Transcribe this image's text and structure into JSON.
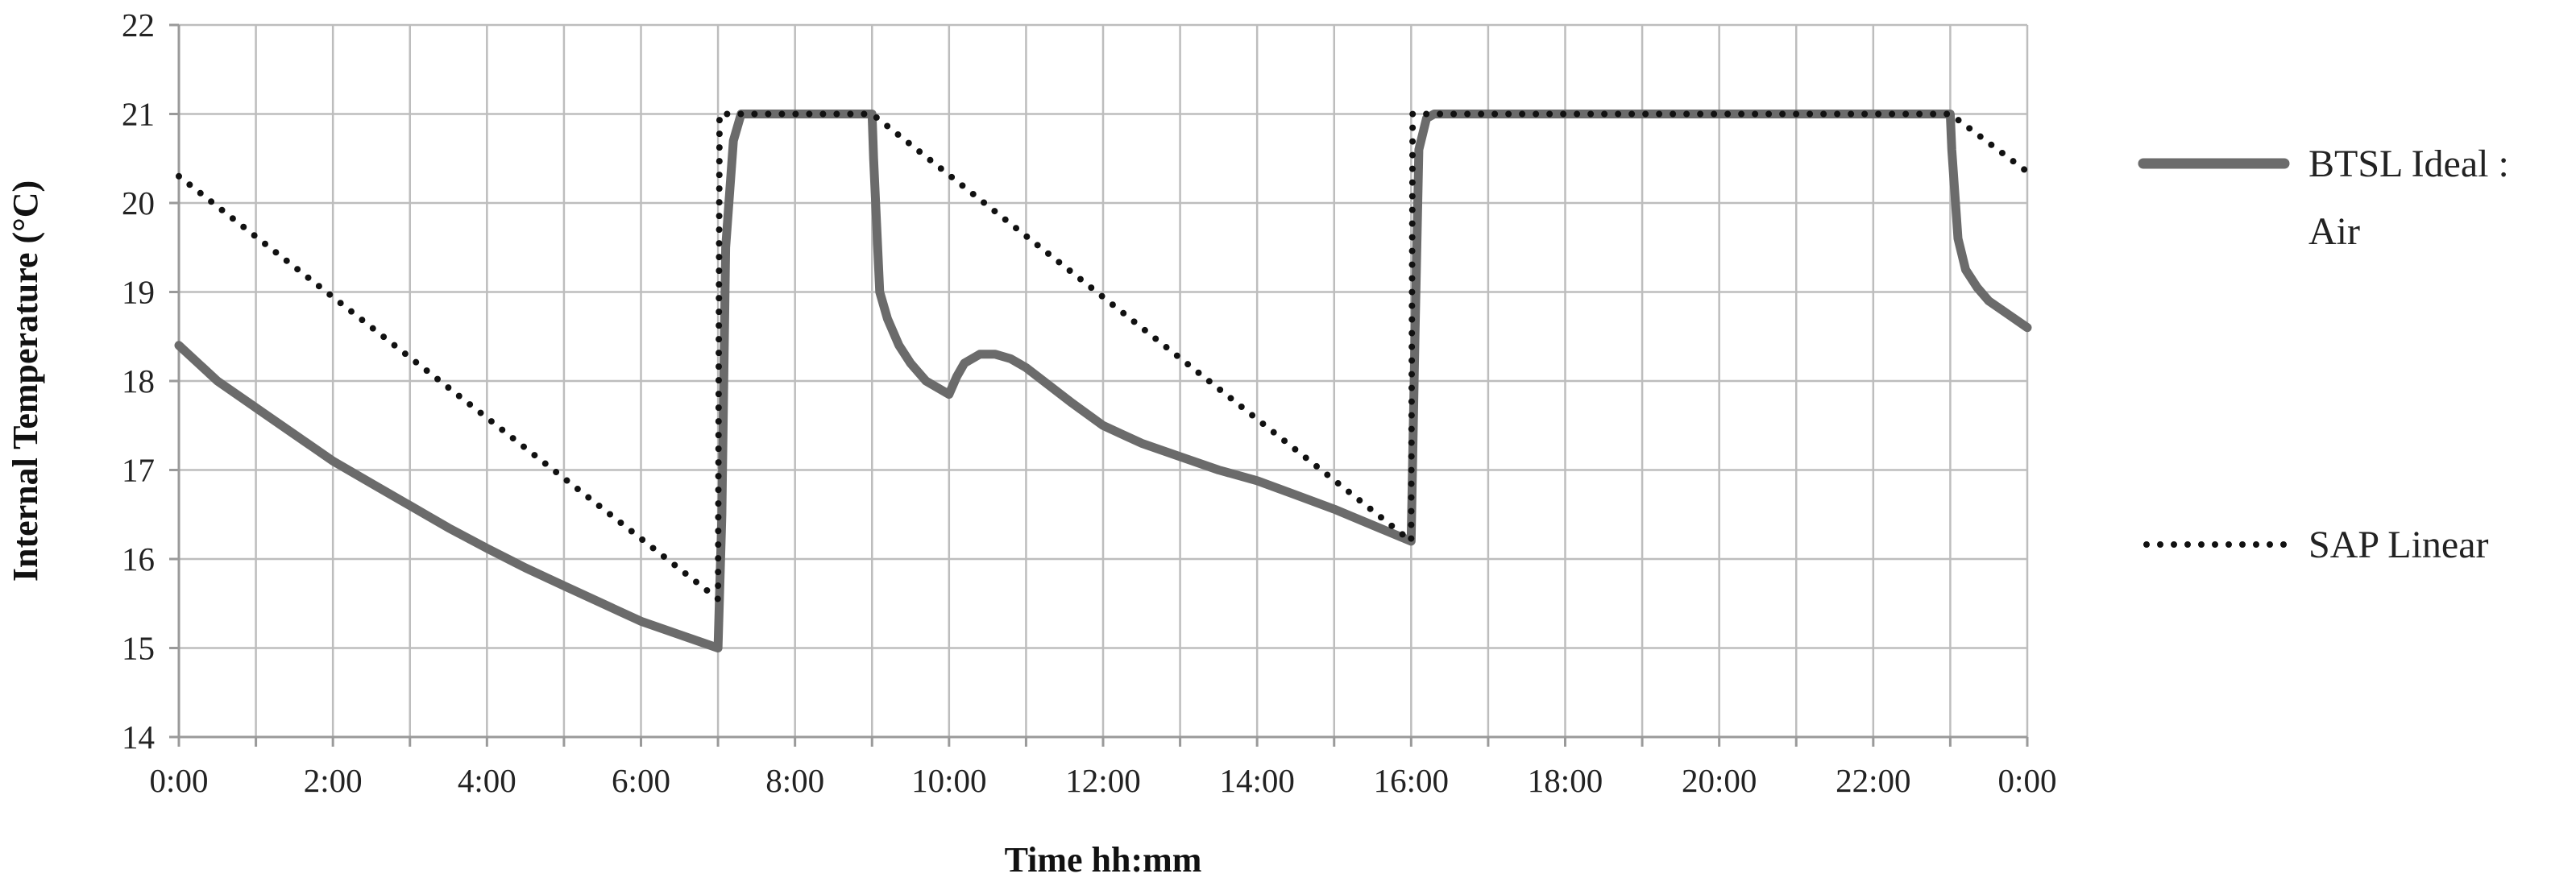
{
  "chart_data": {
    "type": "line",
    "xlabel": "Time hh:mm",
    "ylabel": "Internal Temperature (°C)",
    "xlim": [
      0,
      24
    ],
    "ylim": [
      14,
      22
    ],
    "x_ticks": [
      "0:00",
      "2:00",
      "4:00",
      "6:00",
      "8:00",
      "10:00",
      "12:00",
      "14:00",
      "16:00",
      "18:00",
      "20:00",
      "22:00",
      "0:00"
    ],
    "y_ticks": [
      "14",
      "15",
      "16",
      "17",
      "18",
      "19",
      "20",
      "21",
      "22"
    ],
    "grid": true,
    "legend_position": "right",
    "series": [
      {
        "name": "BTSL Ideal : Air",
        "name_lines": [
          "BTSL Ideal :",
          "Air"
        ],
        "style": "solid",
        "color": "#6b6b6b",
        "x": [
          0,
          0.5,
          1,
          1.5,
          2,
          2.5,
          3,
          3.5,
          4,
          4.5,
          5,
          5.5,
          6,
          6.5,
          7,
          7.05,
          7.1,
          7.2,
          7.3,
          7.5,
          8,
          8.5,
          9,
          9.02,
          9.1,
          9.2,
          9.35,
          9.5,
          9.7,
          10,
          10.1,
          10.2,
          10.4,
          10.6,
          10.8,
          11,
          11.3,
          11.6,
          12,
          12.5,
          13,
          13.5,
          14,
          14.5,
          15,
          15.5,
          16,
          16.05,
          16.1,
          16.2,
          16.3,
          17,
          18,
          19,
          20,
          21,
          22,
          23,
          23.02,
          23.1,
          23.2,
          23.35,
          23.5,
          23.75,
          24
        ],
        "y": [
          18.4,
          18.0,
          17.7,
          17.4,
          17.1,
          16.85,
          16.6,
          16.35,
          16.12,
          15.9,
          15.7,
          15.5,
          15.3,
          15.15,
          15.0,
          16.5,
          19.5,
          20.7,
          21.0,
          21.0,
          21.0,
          21.0,
          21.0,
          20.5,
          19.0,
          18.7,
          18.4,
          18.2,
          18.0,
          17.85,
          18.05,
          18.2,
          18.3,
          18.3,
          18.25,
          18.15,
          17.95,
          17.75,
          17.5,
          17.3,
          17.15,
          17.0,
          16.88,
          16.72,
          16.56,
          16.38,
          16.2,
          18.5,
          20.6,
          20.95,
          21.0,
          21.0,
          21.0,
          21.0,
          21.0,
          21.0,
          21.0,
          21.0,
          20.6,
          19.6,
          19.25,
          19.05,
          18.9,
          18.75,
          18.6
        ]
      },
      {
        "name": "SAP Linear",
        "name_lines": [
          "SAP Linear"
        ],
        "style": "dotted",
        "color": "#111111",
        "x": [
          0,
          7,
          7.02,
          9,
          16,
          16.02,
          23,
          24
        ],
        "y": [
          20.3,
          15.55,
          21.0,
          21.0,
          16.2,
          21.0,
          21.0,
          20.35
        ]
      }
    ]
  }
}
